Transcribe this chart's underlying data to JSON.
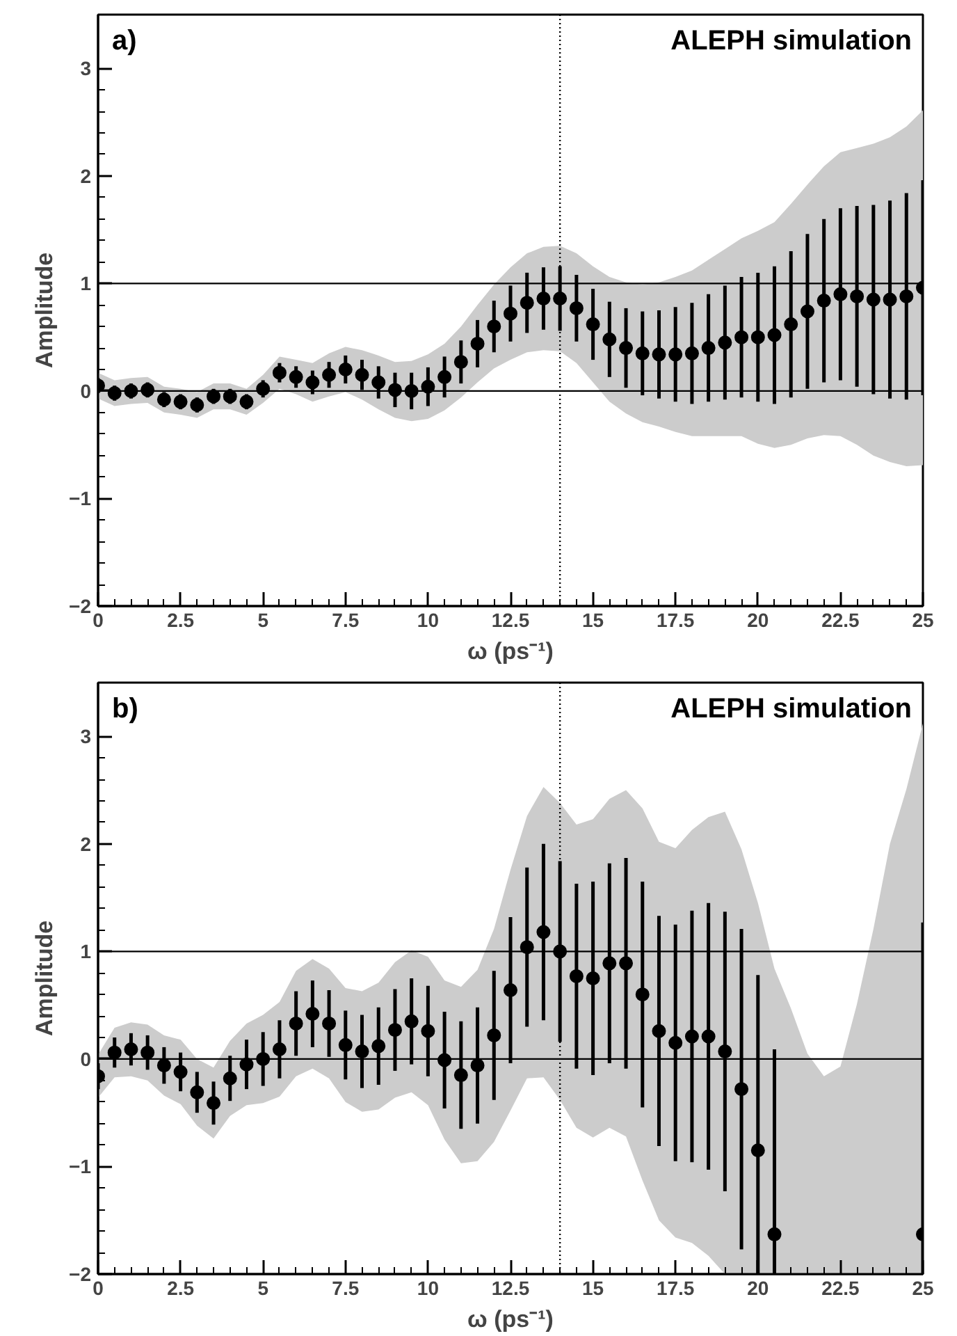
{
  "chart_data": [
    {
      "type": "scatter",
      "annotations": [
        "a)",
        "ALEPH simulation"
      ],
      "xlabel": "ω (ps⁻¹)",
      "ylabel": "Amplitude",
      "x": [
        0,
        0.5,
        1,
        1.5,
        2,
        2.5,
        3,
        3.5,
        4,
        4.5,
        5,
        5.5,
        6,
        6.5,
        7,
        7.5,
        8,
        8.5,
        9,
        9.5,
        10,
        10.5,
        11,
        11.5,
        12,
        12.5,
        13,
        13.5,
        14,
        14.5,
        15,
        15.5,
        16,
        16.5,
        17,
        17.5,
        18,
        18.5,
        19,
        19.5,
        20,
        20.5,
        21,
        21.5,
        22,
        22.5,
        23,
        23.5,
        24,
        24.5,
        25
      ],
      "series": [
        {
          "color": "#000000",
          "values": [
            0.05,
            -0.02,
            0,
            0.01,
            -0.08,
            -0.1,
            -0.13,
            -0.05,
            -0.05,
            -0.1,
            0.02,
            0.17,
            0.13,
            0.08,
            0.15,
            0.2,
            0.15,
            0.08,
            0.01,
            0,
            0.04,
            0.13,
            0.27,
            0.44,
            0.6,
            0.72,
            0.82,
            0.86,
            0.86,
            0.77,
            0.62,
            0.48,
            0.4,
            0.35,
            0.34,
            0.34,
            0.35,
            0.4,
            0.45,
            0.5,
            0.5,
            0.52,
            0.62,
            0.74,
            0.84,
            0.9,
            0.88,
            0.85,
            0.85,
            0.88,
            0.96
          ],
          "errors": [
            0.07,
            0.07,
            0.07,
            0.07,
            0.07,
            0.07,
            0.07,
            0.07,
            0.07,
            0.07,
            0.08,
            0.09,
            0.1,
            0.11,
            0.12,
            0.13,
            0.14,
            0.15,
            0.16,
            0.17,
            0.18,
            0.19,
            0.2,
            0.22,
            0.24,
            0.26,
            0.28,
            0.29,
            0.3,
            0.31,
            0.33,
            0.35,
            0.37,
            0.39,
            0.41,
            0.44,
            0.47,
            0.5,
            0.53,
            0.56,
            0.6,
            0.64,
            0.68,
            0.72,
            0.76,
            0.8,
            0.84,
            0.88,
            0.92,
            0.96,
            1.0
          ],
          "lower": [
            -0.07,
            -0.14,
            -0.12,
            -0.11,
            -0.2,
            -0.22,
            -0.25,
            -0.17,
            -0.17,
            -0.22,
            -0.11,
            0.02,
            -0.03,
            -0.1,
            -0.05,
            -0.01,
            -0.08,
            -0.17,
            -0.25,
            -0.28,
            -0.26,
            -0.18,
            -0.06,
            0.08,
            0.21,
            0.29,
            0.36,
            0.38,
            0.37,
            0.26,
            0.08,
            -0.1,
            -0.21,
            -0.29,
            -0.33,
            -0.38,
            -0.42,
            -0.42,
            -0.42,
            -0.42,
            -0.49,
            -0.53,
            -0.5,
            -0.44,
            -0.41,
            -0.42,
            -0.5,
            -0.6,
            -0.66,
            -0.7,
            -0.69
          ],
          "upper": [
            0.17,
            0.1,
            0.12,
            0.13,
            0.04,
            0.02,
            -0.01,
            0.07,
            0.07,
            0.02,
            0.15,
            0.32,
            0.29,
            0.26,
            0.35,
            0.41,
            0.38,
            0.33,
            0.27,
            0.28,
            0.34,
            0.44,
            0.6,
            0.8,
            0.99,
            1.15,
            1.28,
            1.34,
            1.35,
            1.28,
            1.16,
            1.06,
            1.01,
            0.99,
            1.01,
            1.06,
            1.12,
            1.22,
            1.32,
            1.42,
            1.49,
            1.57,
            1.74,
            1.92,
            2.09,
            2.22,
            2.26,
            2.3,
            2.36,
            2.46,
            2.61
          ]
        }
      ],
      "xlim": [
        0,
        25
      ],
      "ylim": [
        -2,
        3.5
      ],
      "xticks": [
        0,
        2.5,
        5,
        7.5,
        10,
        12.5,
        15,
        17.5,
        20,
        22.5,
        25
      ],
      "yticks": [
        -2,
        -1,
        0,
        1,
        2,
        3
      ],
      "ref_lines": [
        {
          "axis": "y",
          "value": 0
        },
        {
          "axis": "y",
          "value": 1
        },
        {
          "axis": "x",
          "value": 14,
          "line_style": "dotted"
        }
      ],
      "marker": "circle",
      "grid": false
    },
    {
      "type": "scatter",
      "annotations": [
        "b)",
        "ALEPH simulation"
      ],
      "xlabel": "ω (ps⁻¹)",
      "ylabel": "Amplitude",
      "x": [
        0,
        0.5,
        1,
        1.5,
        2,
        2.5,
        3,
        3.5,
        4,
        4.5,
        5,
        5.5,
        6,
        6.5,
        7,
        7.5,
        8,
        8.5,
        9,
        9.5,
        10,
        10.5,
        11,
        11.5,
        12,
        12.5,
        13,
        13.5,
        14,
        14.5,
        15,
        15.5,
        16,
        16.5,
        17,
        17.5,
        18,
        18.5,
        19,
        19.5,
        20,
        20.5,
        21,
        21.5,
        22,
        22.5,
        23,
        23.5,
        24,
        24.5,
        25
      ],
      "series": [
        {
          "color": "#000000",
          "values": [
            -0.16,
            0.06,
            0.09,
            0.06,
            -0.06,
            -0.12,
            -0.31,
            -0.41,
            -0.18,
            -0.05,
            0,
            0.09,
            0.33,
            0.42,
            0.33,
            0.13,
            0.07,
            0.12,
            0.27,
            0.35,
            0.26,
            -0.01,
            -0.15,
            -0.06,
            0.22,
            0.64,
            1.04,
            1.18,
            1.0,
            0.77,
            0.75,
            0.89,
            0.89,
            0.6,
            0.26,
            0.15,
            0.21,
            0.21,
            0.07,
            -0.28,
            -0.85,
            -1.63,
            null,
            null,
            null,
            null,
            null,
            null,
            null,
            null,
            -1.63
          ],
          "errors": [
            0.12,
            0.14,
            0.15,
            0.16,
            0.17,
            0.18,
            0.19,
            0.2,
            0.21,
            0.23,
            0.25,
            0.27,
            0.3,
            0.31,
            0.31,
            0.32,
            0.34,
            0.36,
            0.38,
            0.4,
            0.42,
            0.45,
            0.5,
            0.54,
            0.6,
            0.68,
            0.74,
            0.82,
            0.84,
            0.86,
            0.9,
            0.93,
            0.98,
            1.05,
            1.07,
            1.1,
            1.17,
            1.24,
            1.3,
            1.49,
            1.63,
            [
              -2,
              0.09
            ],
            null,
            null,
            null,
            null,
            null,
            null,
            null,
            null,
            [
              -2,
              1.27
            ]
          ],
          "lower": [
            -0.36,
            -0.17,
            -0.16,
            -0.2,
            -0.34,
            -0.42,
            -0.62,
            -0.74,
            -0.53,
            -0.43,
            -0.41,
            -0.35,
            -0.16,
            -0.09,
            -0.18,
            -0.4,
            -0.49,
            -0.47,
            -0.36,
            -0.31,
            -0.43,
            -0.75,
            -0.97,
            -0.95,
            -0.77,
            -0.48,
            -0.18,
            -0.17,
            -0.38,
            -0.64,
            -0.73,
            -0.64,
            -0.72,
            -1.13,
            -1.5,
            -1.66,
            -1.71,
            -1.83,
            -2,
            -2,
            -2,
            -2,
            -2,
            -2,
            -2,
            -2,
            -2,
            -2,
            -2,
            -2,
            -2
          ],
          "upper": [
            0.04,
            0.29,
            0.34,
            0.32,
            0.22,
            0.18,
            0.0,
            -0.08,
            0.17,
            0.33,
            0.41,
            0.53,
            0.82,
            0.93,
            0.84,
            0.66,
            0.63,
            0.71,
            0.9,
            1.01,
            0.95,
            0.73,
            0.67,
            0.83,
            1.21,
            1.76,
            2.26,
            2.53,
            2.38,
            2.18,
            2.23,
            2.42,
            2.5,
            2.33,
            2.02,
            1.96,
            2.13,
            2.25,
            2.3,
            1.95,
            1.45,
            0.84,
            0.47,
            0.05,
            -0.16,
            -0.07,
            0.51,
            1.21,
            2.0,
            2.51,
            3.12
          ]
        }
      ],
      "xlim": [
        0,
        25
      ],
      "ylim": [
        -2,
        3.5
      ],
      "xticks": [
        0,
        2.5,
        5,
        7.5,
        10,
        12.5,
        15,
        17.5,
        20,
        22.5,
        25
      ],
      "yticks": [
        -2,
        -1,
        0,
        1,
        2,
        3
      ],
      "ref_lines": [
        {
          "axis": "y",
          "value": 0
        },
        {
          "axis": "y",
          "value": 1
        },
        {
          "axis": "x",
          "value": 14,
          "line_style": "dotted"
        }
      ],
      "marker": "circle",
      "grid": false
    }
  ]
}
